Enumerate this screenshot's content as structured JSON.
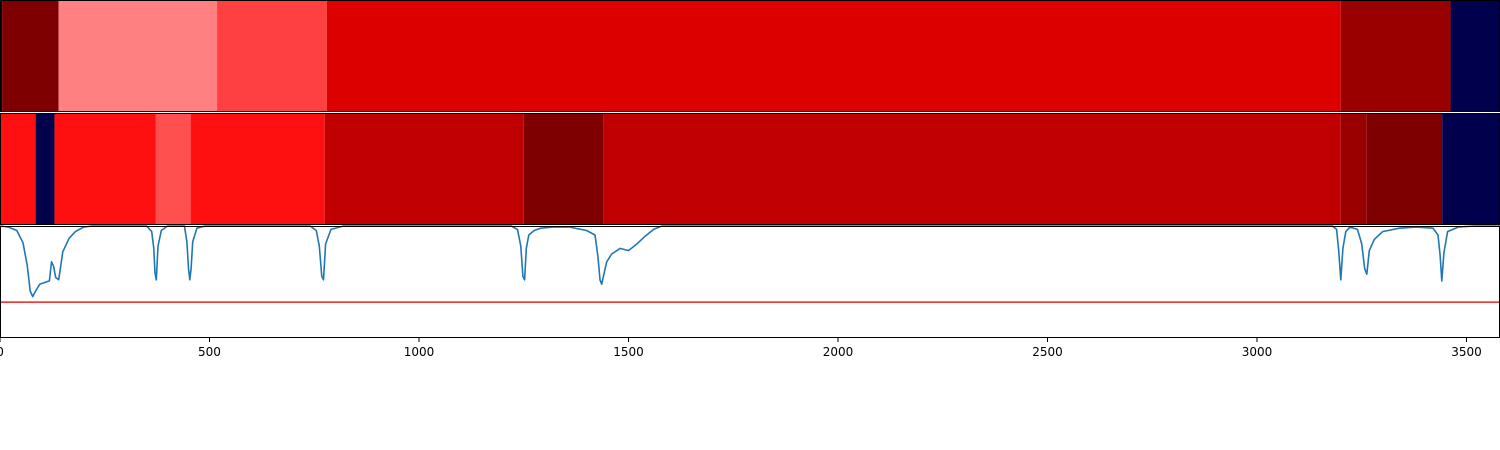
{
  "chart_data": [
    {
      "type": "heatmap",
      "xlim": [
        0,
        3580
      ],
      "segments": [
        {
          "start": 0,
          "end": 5,
          "color": "#00004c"
        },
        {
          "start": 5,
          "end": 140,
          "color": "#7f0000"
        },
        {
          "start": 140,
          "end": 518,
          "color": "#ff8080"
        },
        {
          "start": 518,
          "end": 780,
          "color": "#ff4040"
        },
        {
          "start": 780,
          "end": 3200,
          "color": "#dd0000"
        },
        {
          "start": 3200,
          "end": 3462,
          "color": "#990000"
        },
        {
          "start": 3462,
          "end": 3580,
          "color": "#00004c"
        }
      ]
    },
    {
      "type": "heatmap",
      "xlim": [
        0,
        3580
      ],
      "segments": [
        {
          "start": 0,
          "end": 85,
          "color": "#ff1010"
        },
        {
          "start": 85,
          "end": 130,
          "color": "#00004c"
        },
        {
          "start": 130,
          "end": 372,
          "color": "#ff1010"
        },
        {
          "start": 372,
          "end": 455,
          "color": "#ff5050"
        },
        {
          "start": 455,
          "end": 775,
          "color": "#ff1010"
        },
        {
          "start": 775,
          "end": 1250,
          "color": "#c00000"
        },
        {
          "start": 1250,
          "end": 1440,
          "color": "#7f0000"
        },
        {
          "start": 1440,
          "end": 3200,
          "color": "#c00000"
        },
        {
          "start": 3200,
          "end": 3262,
          "color": "#990000"
        },
        {
          "start": 3262,
          "end": 3442,
          "color": "#7f0000"
        },
        {
          "start": 3442,
          "end": 3580,
          "color": "#00004c"
        }
      ]
    },
    {
      "type": "line",
      "xlim": [
        0,
        3580
      ],
      "ylim": [
        0,
        1
      ],
      "threshold": 0.32,
      "threshold_color": "#e8231a",
      "line_color": "#1f77b4",
      "x_ticks": [
        "0",
        "500",
        "1000",
        "1500",
        "2000",
        "2500",
        "3000",
        "3500"
      ],
      "series": [
        {
          "x": [
            0,
            20,
            40,
            55,
            65,
            72,
            78,
            85,
            95,
            110,
            118,
            123,
            128,
            133,
            140,
            150,
            165,
            180,
            200,
            220,
            350,
            362,
            367,
            370,
            373,
            377,
            385,
            400,
            440,
            446,
            450,
            453,
            456,
            460,
            470,
            490,
            740,
            755,
            762,
            768,
            772,
            777,
            790,
            820,
            1220,
            1235,
            1243,
            1248,
            1252,
            1256,
            1262,
            1275,
            1290,
            1320,
            1360,
            1400,
            1420,
            1427,
            1432,
            1436,
            1440,
            1448,
            1460,
            1480,
            1500,
            1520,
            1540,
            1560,
            1580,
            3180,
            3190,
            3195,
            3200,
            3205,
            3212,
            3222,
            3240,
            3250,
            3257,
            3262,
            3268,
            3280,
            3300,
            3340,
            3380,
            3420,
            3432,
            3437,
            3441,
            3446,
            3455,
            3480,
            3520,
            3580
          ],
          "y": [
            1.0,
            0.99,
            0.96,
            0.85,
            0.65,
            0.42,
            0.37,
            0.42,
            0.48,
            0.5,
            0.51,
            0.68,
            0.64,
            0.54,
            0.52,
            0.77,
            0.89,
            0.95,
            0.99,
            1.0,
            1.0,
            0.95,
            0.8,
            0.58,
            0.52,
            0.82,
            0.96,
            1.0,
            1.0,
            0.86,
            0.62,
            0.52,
            0.62,
            0.86,
            0.98,
            1.0,
            1.0,
            0.96,
            0.82,
            0.55,
            0.52,
            0.84,
            0.97,
            1.0,
            1.0,
            0.97,
            0.82,
            0.55,
            0.52,
            0.8,
            0.92,
            0.96,
            0.98,
            0.99,
            0.99,
            0.96,
            0.92,
            0.73,
            0.52,
            0.48,
            0.55,
            0.68,
            0.75,
            0.8,
            0.78,
            0.84,
            0.91,
            0.97,
            1.0,
            1.0,
            0.97,
            0.78,
            0.52,
            0.8,
            0.95,
            0.99,
            0.97,
            0.84,
            0.62,
            0.57,
            0.78,
            0.88,
            0.95,
            0.98,
            0.99,
            0.98,
            0.92,
            0.74,
            0.51,
            0.76,
            0.95,
            0.99,
            1.0,
            1.0
          ]
        }
      ]
    }
  ]
}
